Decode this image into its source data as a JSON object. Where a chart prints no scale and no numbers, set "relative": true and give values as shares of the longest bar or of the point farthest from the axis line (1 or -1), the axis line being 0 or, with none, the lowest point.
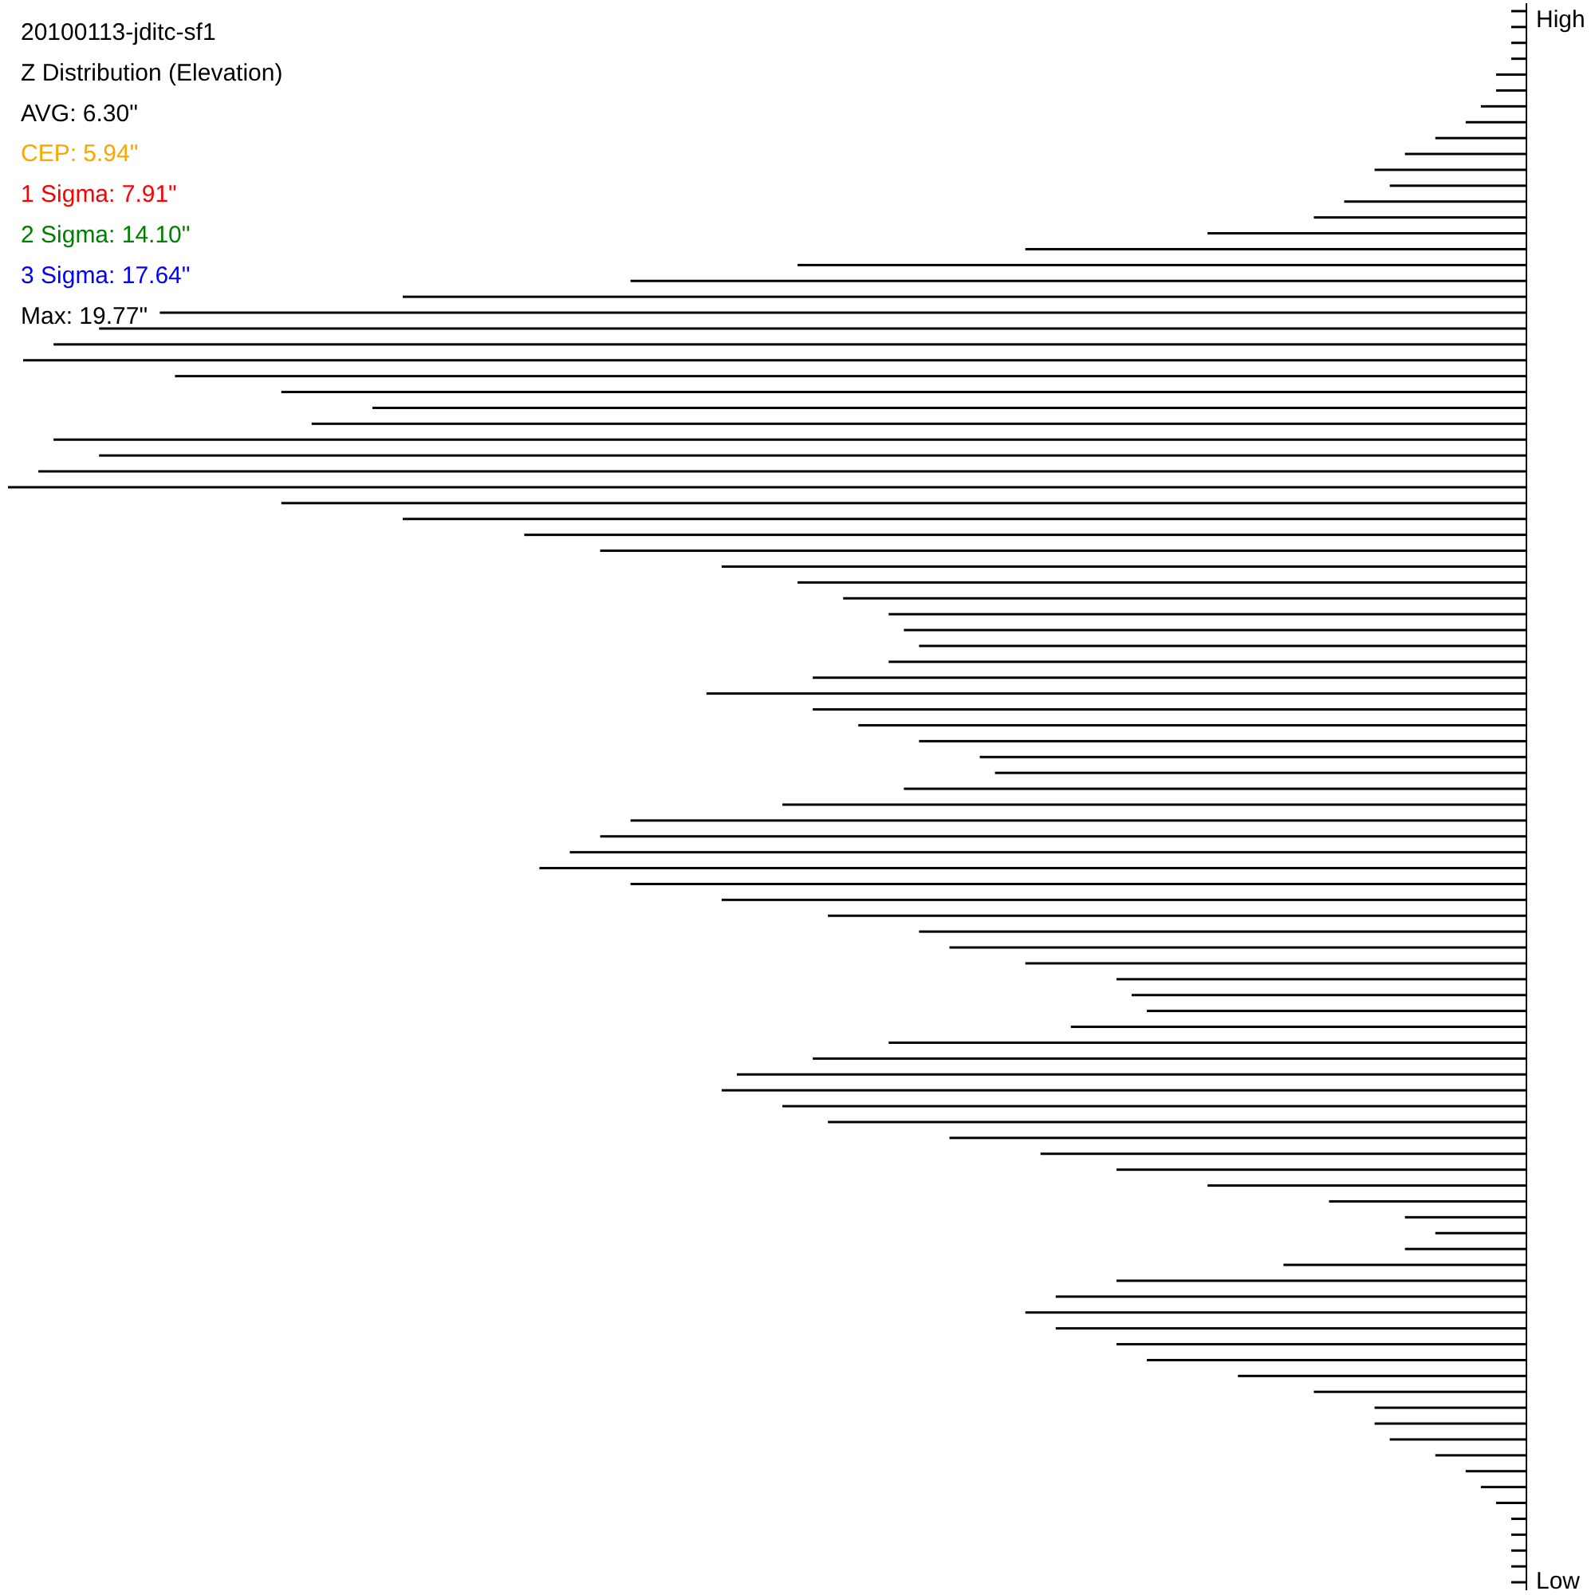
{
  "chart_data": {
    "type": "bar",
    "orientation": "horizontal",
    "relative": true,
    "title": "20100113-jditc-sf1",
    "subtitle": "Z Distribution (Elevation)",
    "annotations": [
      "AVG: 6.30\"",
      "CEP: 5.94\"",
      "1 Sigma: 7.91\"",
      "2 Sigma: 14.10\"",
      "3 Sigma: 17.64\"",
      "Max: 19.77\""
    ],
    "color": "#000000",
    "categories": [
      "High",
      null,
      null,
      null,
      null,
      null,
      null,
      null,
      null,
      null,
      null,
      null,
      null,
      null,
      null,
      null,
      null,
      null,
      null,
      null,
      null,
      null,
      null,
      null,
      null,
      null,
      null,
      null,
      null,
      null,
      null,
      null,
      null,
      null,
      null,
      null,
      null,
      null,
      null,
      null,
      null,
      null,
      null,
      null,
      null,
      null,
      null,
      null,
      null,
      null,
      null,
      null,
      null,
      null,
      null,
      null,
      null,
      null,
      null,
      null,
      null,
      null,
      null,
      null,
      null,
      null,
      null,
      null,
      null,
      null,
      null,
      null,
      null,
      null,
      null,
      null,
      null,
      null,
      null,
      null,
      null,
      null,
      null,
      null,
      null,
      null,
      null,
      null,
      null,
      null,
      null,
      null,
      null,
      null,
      null,
      null,
      null,
      null,
      null,
      "Low"
    ],
    "values": [
      0.01,
      0.01,
      0.01,
      0.01,
      0.02,
      0.02,
      0.03,
      0.04,
      0.06,
      0.08,
      0.1,
      0.09,
      0.12,
      0.14,
      0.21,
      0.33,
      0.48,
      0.59,
      0.74,
      0.9,
      0.94,
      0.97,
      0.99,
      0.89,
      0.82,
      0.76,
      0.8,
      0.97,
      0.94,
      0.98,
      1,
      0.82,
      0.74,
      0.66,
      0.61,
      0.53,
      0.48,
      0.45,
      0.42,
      0.41,
      0.4,
      0.42,
      0.47,
      0.54,
      0.47,
      0.44,
      0.4,
      0.36,
      0.35,
      0.41,
      0.49,
      0.59,
      0.61,
      0.63,
      0.65,
      0.59,
      0.53,
      0.46,
      0.4,
      0.38,
      0.33,
      0.27,
      0.26,
      0.25,
      0.3,
      0.42,
      0.47,
      0.52,
      0.53,
      0.49,
      0.46,
      0.38,
      0.32,
      0.27,
      0.21,
      0.13,
      0.08,
      0.06,
      0.08,
      0.16,
      0.27,
      0.31,
      0.33,
      0.31,
      0.27,
      0.25,
      0.19,
      0.14,
      0.1,
      0.1,
      0.09,
      0.06,
      0.04,
      0.03,
      0.02,
      0.01,
      0.01,
      0.01,
      0.01,
      0.01
    ]
  }
}
